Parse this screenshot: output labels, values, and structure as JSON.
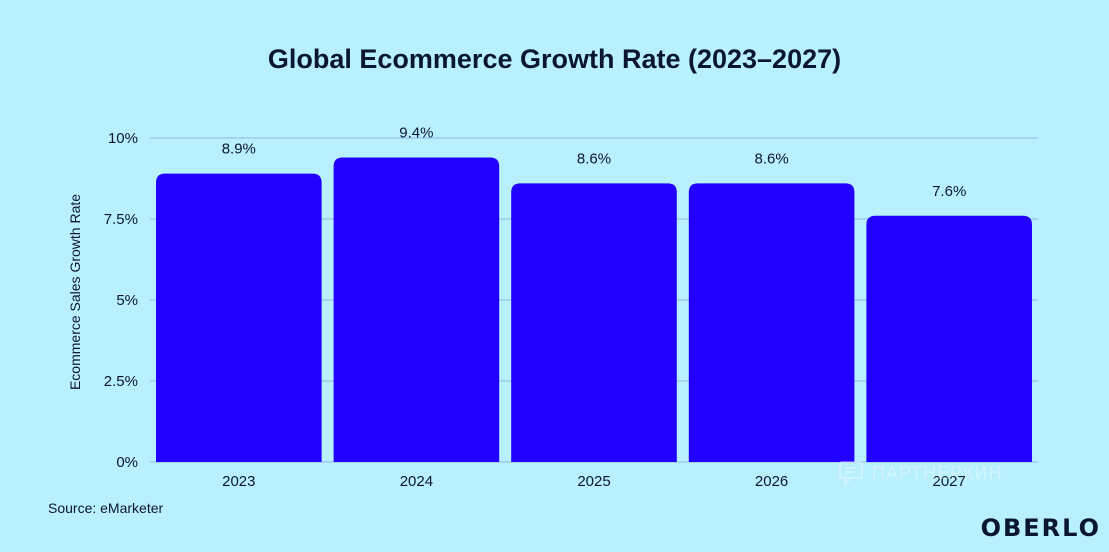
{
  "chart_data": {
    "type": "bar",
    "title": "Global Ecommerce Growth Rate (2023–2027)",
    "ylabel": "Ecommerce Sales Growth Rate",
    "xlabel": "",
    "categories": [
      "2023",
      "2024",
      "2025",
      "2026",
      "2027"
    ],
    "values": [
      8.9,
      9.4,
      8.6,
      8.6,
      7.6
    ],
    "value_labels": [
      "8.9%",
      "9.4%",
      "8.6%",
      "8.6%",
      "7.6%"
    ],
    "ylim": [
      0,
      10
    ],
    "yticks": [
      0,
      2.5,
      5,
      7.5,
      10
    ],
    "ytick_labels": [
      "0%",
      "2.5%",
      "5%",
      "7.5%",
      "10%"
    ],
    "grid": true,
    "bar_color": "#2200ff",
    "background_color": "#b9f0fe"
  },
  "source": "Source: eMarketer",
  "brand": "OBERLO",
  "watermark": "ПАРТНЕРКИН"
}
